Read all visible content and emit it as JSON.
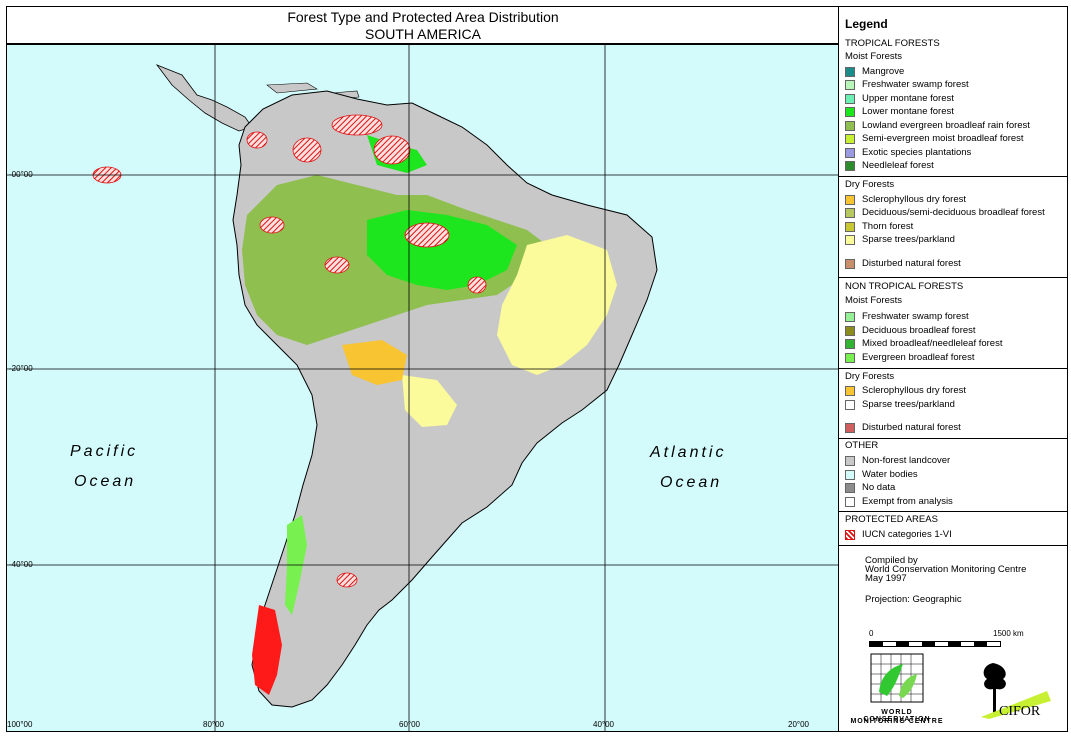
{
  "title": {
    "line1": "Forest Type and Protected Area Distribution",
    "line2": "SOUTH AMERICA"
  },
  "map": {
    "lat_labels": [
      "-00°00",
      "-20°00",
      "-40°00"
    ],
    "lon_labels": [
      "100°00",
      "80°00",
      "60°00",
      "40°00",
      "20°00"
    ],
    "pacific": [
      "Pacific",
      "Ocean"
    ],
    "atlantic": [
      "Atlantic",
      "Ocean"
    ],
    "colors": {
      "ocean": "#d4fbfc",
      "nonforest": "#c8c8c8",
      "lowland": "#8fbf4f",
      "lower_montane": "#1ee61e",
      "sparse": "#fbfb9b",
      "sclerophyllous": "#f8c432",
      "protected": "#e01010"
    }
  },
  "legend": {
    "title": "Legend",
    "tropical": "TROPICAL FORESTS",
    "moist": "Moist Forests",
    "tropical_moist": [
      {
        "label": "Mangrove",
        "color": "#1a8c8c"
      },
      {
        "label": "Freshwater swamp forest",
        "color": "#b8f5b8"
      },
      {
        "label": "Upper montane forest",
        "color": "#6ef0b4"
      },
      {
        "label": "Lower montane forest",
        "color": "#1ee61e"
      },
      {
        "label": "Lowland evergreen broadleaf rain forest",
        "color": "#8fbf4f"
      },
      {
        "label": "Semi-evergreen moist broadleaf forest",
        "color": "#c8f032"
      },
      {
        "label": "Exotic species plantations",
        "color": "#9a9ae0"
      },
      {
        "label": "Needleleaf forest",
        "color": "#2a8c2a"
      }
    ],
    "dry": "Dry Forests",
    "tropical_dry": [
      {
        "label": "Sclerophyllous dry forest",
        "color": "#f8c432"
      },
      {
        "label": "Deciduous/semi-deciduous broadleaf forest",
        "color": "#b8c860"
      },
      {
        "label": "Thorn forest",
        "color": "#c8c832"
      },
      {
        "label": "Sparse trees/parkland",
        "color": "#fbfb9b"
      }
    ],
    "tropical_disturbed": {
      "label": "Disturbed natural forest",
      "color": "#c8906a"
    },
    "non_tropical": "NON TROPICAL FORESTS",
    "nt_moist": "Moist Forests",
    "non_tropical_moist": [
      {
        "label": "Freshwater swamp forest",
        "color": "#96f096"
      },
      {
        "label": "Deciduous broadleaf forest",
        "color": "#8c8c1e"
      },
      {
        "label": "Mixed broadleaf/needleleaf forest",
        "color": "#32b432"
      },
      {
        "label": "Evergreen broadleaf forest",
        "color": "#78f050"
      }
    ],
    "nt_dry": "Dry Forests",
    "non_tropical_dry": [
      {
        "label": "Sclerophyllous dry forest",
        "color": "#f8c432"
      },
      {
        "label": "Sparse trees/parkland",
        "color": "#ffffff"
      }
    ],
    "nt_disturbed": {
      "label": "Disturbed natural forest",
      "color": "#d06060"
    },
    "other": "OTHER",
    "other_items": [
      {
        "label": "Non-forest landcover",
        "color": "#c8c8c8"
      },
      {
        "label": "Water bodies",
        "color": "#d4fbfc"
      },
      {
        "label": "No data",
        "color": "#8c8c8c"
      },
      {
        "label": "Exempt from analysis",
        "color": "#ffffff"
      }
    ],
    "protected": "PROTECTED AREAS",
    "protected_item": "IUCN categories 1-VI",
    "compiled": [
      "Compiled by",
      "World Conservation Monitoring Centre",
      "May 1997"
    ],
    "projection": "Projection: Geographic",
    "scale_start": "0",
    "scale_end": "1500 km",
    "wcmc_caption": [
      "WORLD CONSERVATION",
      "MONITORING CENTRE"
    ],
    "cifor": "CIFOR"
  }
}
